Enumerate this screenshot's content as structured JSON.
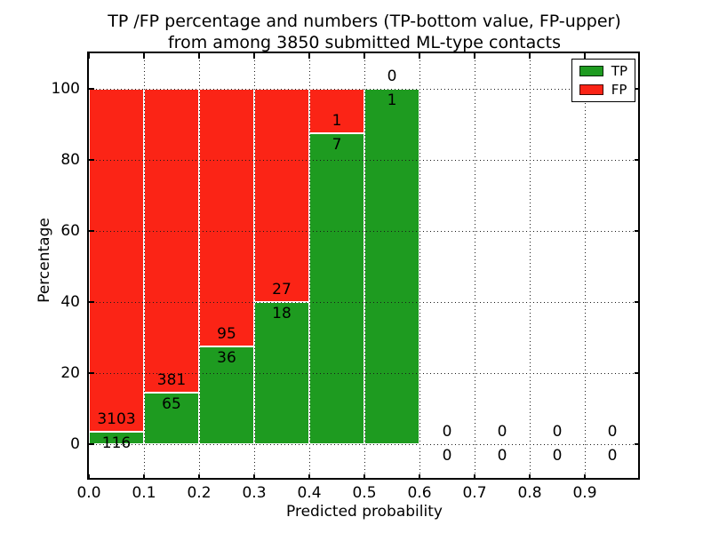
{
  "title": {
    "line1": "TP /FP percentage and numbers (TP-bottom value, FP-upper)",
    "line2": "from among 3850 submitted ML-type contacts"
  },
  "chart_data": {
    "type": "bar",
    "stacked": true,
    "title": "TP /FP percentage and numbers (TP-bottom value, FP-upper)\nfrom among 3850 submitted ML-type contacts",
    "xlabel": "Predicted probability",
    "ylabel": "Percentage",
    "xlim": [
      0.0,
      1.0
    ],
    "ylim": [
      -10,
      110
    ],
    "grid": true,
    "grid_style": "dotted",
    "legend_position": "upper right",
    "total_contacts": 3850,
    "x_bin_edges": [
      0.0,
      0.1,
      0.2,
      0.3,
      0.4,
      0.5,
      0.6,
      0.7,
      0.8,
      0.9,
      1.0
    ],
    "xtick_labels": [
      "0.0",
      "0.1",
      "0.2",
      "0.3",
      "0.4",
      "0.5",
      "0.6",
      "0.7",
      "0.8",
      "0.9"
    ],
    "ytick_values": [
      0,
      20,
      40,
      60,
      80,
      100
    ],
    "units": "percent of bin total (bars), raw counts (labels)",
    "series": [
      {
        "name": "TP",
        "color": "#1e9b20",
        "counts": [
          116,
          65,
          36,
          18,
          7,
          1,
          0,
          0,
          0,
          0
        ]
      },
      {
        "name": "FP",
        "color": "#fb2416",
        "counts": [
          3103,
          381,
          95,
          27,
          1,
          0,
          0,
          0,
          0,
          0
        ]
      }
    ],
    "tp_percent_per_bin": [
      3.6,
      14.6,
      27.5,
      40.0,
      87.5,
      100.0,
      0,
      0,
      0,
      0
    ],
    "bar_edge_color": "#ffffff"
  }
}
